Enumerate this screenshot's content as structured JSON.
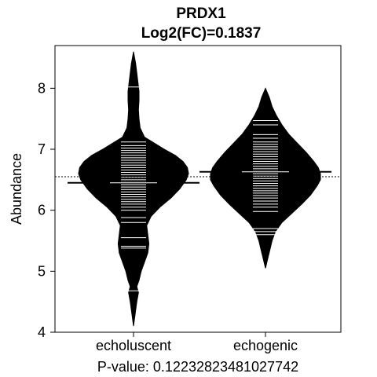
{
  "chart_data": {
    "type": "beanplot",
    "title": "PRDX1",
    "subtitle": "Log2(FC)=0.1837",
    "ylabel": "Abundance",
    "xlabel": "P-value: 0.12232823481027742",
    "ylim": [
      4,
      8.7
    ],
    "yticks": [
      4,
      5,
      6,
      7,
      8
    ],
    "categories": [
      "echoluscent",
      "echogenic"
    ],
    "overall_mean": 6.55,
    "colors": {
      "bean": "#000000",
      "beanline": "#ffffff",
      "background": "#ffffff"
    },
    "series": [
      {
        "group_mean": 6.45,
        "density": [
          [
            4.1,
            0
          ],
          [
            4.3,
            0.015
          ],
          [
            4.5,
            0.03
          ],
          [
            4.65,
            0.045
          ],
          [
            4.75,
            0.03
          ],
          [
            4.85,
            0.05
          ],
          [
            5.0,
            0.07
          ],
          [
            5.15,
            0.1
          ],
          [
            5.3,
            0.13
          ],
          [
            5.45,
            0.14
          ],
          [
            5.6,
            0.13
          ],
          [
            5.75,
            0.12
          ],
          [
            5.9,
            0.16
          ],
          [
            6.05,
            0.24
          ],
          [
            6.2,
            0.34
          ],
          [
            6.35,
            0.42
          ],
          [
            6.5,
            0.48
          ],
          [
            6.6,
            0.5
          ],
          [
            6.7,
            0.49
          ],
          [
            6.8,
            0.45
          ],
          [
            6.9,
            0.38
          ],
          [
            7.0,
            0.28
          ],
          [
            7.1,
            0.19
          ],
          [
            7.2,
            0.1
          ],
          [
            7.35,
            0.06
          ],
          [
            7.5,
            0.05
          ],
          [
            7.65,
            0.045
          ],
          [
            7.8,
            0.05
          ],
          [
            7.95,
            0.05
          ],
          [
            8.1,
            0.04
          ],
          [
            8.25,
            0.03
          ],
          [
            8.4,
            0.02
          ],
          [
            8.6,
            0
          ]
        ],
        "points": [
          4.68,
          5.38,
          5.41,
          5.55,
          5.8,
          5.88,
          6.0,
          6.05,
          6.1,
          6.14,
          6.18,
          6.22,
          6.26,
          6.3,
          6.34,
          6.38,
          6.42,
          6.46,
          6.5,
          6.54,
          6.58,
          6.62,
          6.66,
          6.7,
          6.74,
          6.78,
          6.82,
          6.86,
          6.9,
          6.94,
          6.98,
          7.02,
          7.06,
          7.12,
          8.02
        ]
      },
      {
        "group_mean": 6.63,
        "density": [
          [
            5.05,
            0
          ],
          [
            5.2,
            0.02
          ],
          [
            5.35,
            0.04
          ],
          [
            5.5,
            0.06
          ],
          [
            5.65,
            0.09
          ],
          [
            5.8,
            0.15
          ],
          [
            5.95,
            0.24
          ],
          [
            6.1,
            0.33
          ],
          [
            6.25,
            0.41
          ],
          [
            6.4,
            0.47
          ],
          [
            6.5,
            0.5
          ],
          [
            6.6,
            0.5
          ],
          [
            6.7,
            0.48
          ],
          [
            6.8,
            0.44
          ],
          [
            6.95,
            0.37
          ],
          [
            7.1,
            0.29
          ],
          [
            7.25,
            0.21
          ],
          [
            7.4,
            0.15
          ],
          [
            7.55,
            0.1
          ],
          [
            7.7,
            0.06
          ],
          [
            7.85,
            0.035
          ],
          [
            8.0,
            0
          ]
        ],
        "points": [
          5.6,
          5.65,
          5.7,
          5.98,
          6.05,
          6.1,
          6.15,
          6.2,
          6.24,
          6.28,
          6.32,
          6.36,
          6.4,
          6.44,
          6.48,
          6.52,
          6.56,
          6.6,
          6.64,
          6.68,
          6.72,
          6.76,
          6.8,
          6.84,
          6.88,
          6.92,
          6.96,
          7.0,
          7.04,
          7.08,
          7.12,
          7.18,
          7.24,
          7.4,
          7.47
        ]
      }
    ]
  }
}
